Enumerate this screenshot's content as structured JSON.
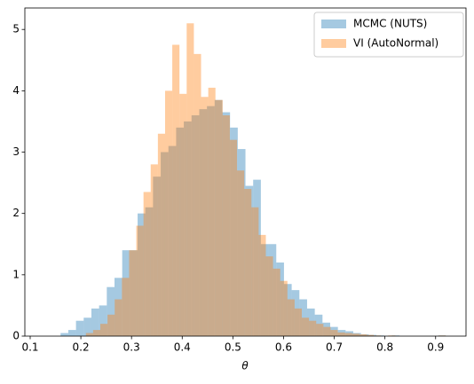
{
  "chart_data": {
    "type": "histogram",
    "x_label": "θ",
    "xlim": [
      0.0895,
      0.96
    ],
    "ylim": [
      0,
      5.35
    ],
    "xticks": [
      0.1,
      0.2,
      0.3,
      0.4,
      0.5,
      0.6,
      0.7,
      0.8,
      0.9
    ],
    "yticks": [
      0,
      1,
      2,
      3,
      4,
      5
    ],
    "legend": "upper right",
    "opacity": 0.4,
    "series": [
      {
        "name": "MCMC (NUTS)",
        "color": "#1f77b4",
        "bins": [
          0.16,
          0.1752,
          0.1904,
          0.2056,
          0.2208,
          0.236,
          0.2512,
          0.2664,
          0.2816,
          0.2968,
          0.312,
          0.3272,
          0.3424,
          0.3576,
          0.3728,
          0.388,
          0.4032,
          0.4184,
          0.4336,
          0.4488,
          0.464,
          0.4792,
          0.4944,
          0.5096,
          0.5248,
          0.54,
          0.5552,
          0.5704,
          0.5856,
          0.6008,
          0.616,
          0.6312,
          0.6464,
          0.6616,
          0.6768,
          0.692,
          0.7072,
          0.7224,
          0.7376,
          0.7528,
          0.768,
          0.7832,
          0.7984,
          0.8136,
          0.8288,
          0.844,
          0.8592,
          0.8744,
          0.8896,
          0.9048,
          0.92
        ],
        "values": [
          0.05,
          0.1,
          0.25,
          0.3,
          0.45,
          0.5,
          0.8,
          0.95,
          1.4,
          1.4,
          2.0,
          2.1,
          2.6,
          3.0,
          3.1,
          3.4,
          3.5,
          3.6,
          3.7,
          3.75,
          3.85,
          3.65,
          3.4,
          3.05,
          2.45,
          2.55,
          1.5,
          1.5,
          1.2,
          0.85,
          0.75,
          0.6,
          0.45,
          0.35,
          0.22,
          0.15,
          0.1,
          0.08,
          0.05,
          0.03,
          0.02,
          0.01,
          0,
          0.01,
          0,
          0,
          0,
          0,
          0,
          0.01
        ]
      },
      {
        "name": "VI (AutoNormal)",
        "color": "#ff7f0e",
        "bins": [
          0.21,
          0.2242,
          0.2384,
          0.2526,
          0.2668,
          0.281,
          0.2952,
          0.3094,
          0.3236,
          0.3378,
          0.352,
          0.3662,
          0.3804,
          0.3946,
          0.4088,
          0.423,
          0.4372,
          0.4514,
          0.4656,
          0.4798,
          0.494,
          0.5082,
          0.5224,
          0.5366,
          0.5508,
          0.565,
          0.5792,
          0.5934,
          0.6076,
          0.6218,
          0.636,
          0.6502,
          0.6644,
          0.6786,
          0.6928,
          0.707,
          0.7212,
          0.7354,
          0.7496,
          0.7638,
          0.778,
          0.7922,
          0.8064,
          0.8206,
          0.8348,
          0.849,
          0.8632,
          0.8774,
          0.8916,
          0.9058,
          0.92
        ],
        "values": [
          0.05,
          0.1,
          0.2,
          0.35,
          0.6,
          0.95,
          1.4,
          1.8,
          2.35,
          2.8,
          3.3,
          4.0,
          4.75,
          3.95,
          5.1,
          4.6,
          3.9,
          4.05,
          3.85,
          3.6,
          3.2,
          2.7,
          2.4,
          2.1,
          1.65,
          1.3,
          1.1,
          0.9,
          0.6,
          0.45,
          0.3,
          0.25,
          0.2,
          0.15,
          0.1,
          0.06,
          0.05,
          0.04,
          0.03,
          0.02,
          0.01,
          0,
          0.01,
          0,
          0,
          0,
          0,
          0,
          0,
          0.01
        ]
      }
    ]
  }
}
